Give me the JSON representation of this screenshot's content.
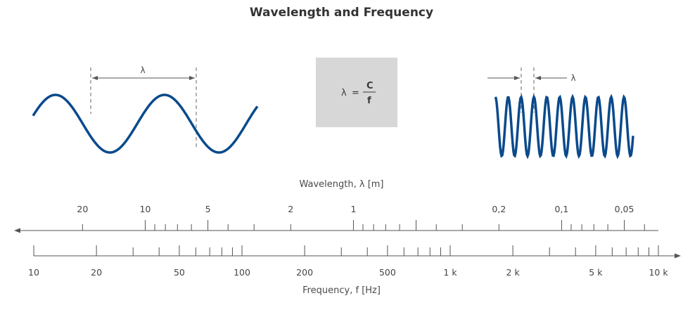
{
  "title": "Wavelength and Frequency",
  "lambda_symbol": "λ",
  "formula": {
    "lhs": "λ",
    "equals": "=",
    "numerator": "C",
    "denominator": "f"
  },
  "wavelength_axis": {
    "title": "Wavelength, λ [m]",
    "labels": [
      "20",
      "10",
      "5",
      "2",
      "1",
      "0,2",
      "0,1",
      "0,05"
    ],
    "direction": "left"
  },
  "frequency_axis": {
    "title": "Frequency, f [Hz]",
    "labels": [
      "10",
      "20",
      "50",
      "100",
      "200",
      "500",
      "1 k",
      "2 k",
      "5 k",
      "10 k"
    ],
    "direction": "right"
  },
  "colors": {
    "wave": "#0a4a8c",
    "axis": "#555555",
    "box": "#d7d7d7"
  }
}
